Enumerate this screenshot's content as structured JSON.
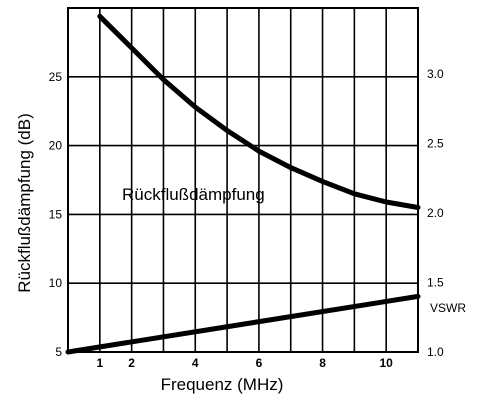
{
  "chart_data": {
    "type": "line",
    "xlabel": "Frequenz (MHz)",
    "ylabel": "Rückflußdämpfung (dB)",
    "y2label": "VSWR",
    "x_ticks": [
      "1",
      "2",
      "4",
      "6",
      "8",
      "10"
    ],
    "y_ticks": [
      "5",
      "10",
      "15",
      "20",
      "25"
    ],
    "y2_ticks": [
      "1.0",
      "1.5",
      "2.0",
      "2.5",
      "3.0"
    ],
    "xlim": [
      0,
      11
    ],
    "ylim": [
      5,
      30
    ],
    "annotation": "Rückflußdämpfung",
    "grid": true,
    "series": [
      {
        "name": "Rückflußdämpfung",
        "x": [
          1,
          2,
          3,
          4,
          5,
          6,
          7,
          8,
          9,
          10,
          11
        ],
        "y": [
          29.4,
          27.1,
          24.8,
          22.8,
          21.1,
          19.6,
          18.4,
          17.4,
          16.5,
          15.9,
          15.5
        ]
      },
      {
        "name": "VSWR",
        "x": [
          0,
          11
        ],
        "y": [
          1.0,
          1.4
        ]
      }
    ]
  }
}
